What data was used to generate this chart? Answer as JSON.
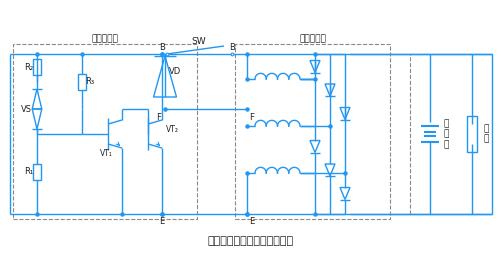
{
  "title": "外搭铁型电子调节器基本电路",
  "circuit_color": "#2196F3",
  "bg_color": "#FFFFFF",
  "text_color": "#222222",
  "dashed_color": "#888888",
  "title_fontsize": 8,
  "label_fontsize": 6.5,
  "small_fontsize": 6,
  "figsize": [
    5.01,
    2.54
  ],
  "dpi": 100,
  "label_regulator": "电子调节器",
  "label_generator": "交流发电机",
  "label_R1": "R₁",
  "label_R2": "R₂",
  "label_R3": "R₃",
  "label_VS": "VS",
  "label_VT1": "VT₁",
  "label_VT2": "VT₂",
  "label_VD": "VD",
  "label_SW": "SW",
  "label_B": "B",
  "label_F": "F",
  "label_E": "E",
  "label_battery": "蓄\n电\n池",
  "label_load": "负\n载"
}
